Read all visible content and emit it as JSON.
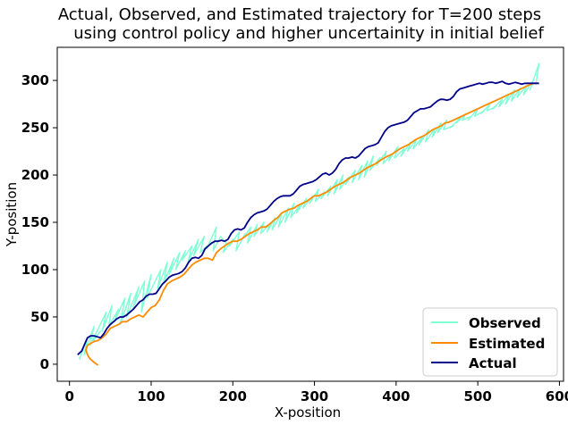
{
  "chart_data": {
    "type": "line",
    "title_line1": "Actual, Observed, and Estimated trajectory for T=200 steps",
    "title_line2": "using control policy and higher uncertainity in initial belief",
    "xlabel": "X-position",
    "ylabel": "Y-position",
    "xlim": [
      -15,
      605
    ],
    "ylim": [
      -18,
      335
    ],
    "xticks": [
      0,
      100,
      200,
      300,
      400,
      500,
      600
    ],
    "yticks": [
      0,
      50,
      100,
      150,
      200,
      250,
      300
    ],
    "xtick_labels": [
      "0",
      "100",
      "200",
      "300",
      "400",
      "500",
      "600"
    ],
    "ytick_labels": [
      "0",
      "50",
      "100",
      "150",
      "200",
      "250",
      "300"
    ],
    "legend_position": "bottom-right",
    "series": [
      {
        "name": "Observed",
        "color": "#7fffd4",
        "x": [
          12,
          22,
          18,
          30,
          25,
          38,
          28,
          45,
          40,
          52,
          48,
          60,
          55,
          68,
          62,
          75,
          70,
          85,
          78,
          92,
          88,
          100,
          95,
          105,
          112,
          108,
          120,
          115,
          128,
          122,
          135,
          130,
          142,
          138,
          150,
          145,
          158,
          152,
          165,
          160,
          172,
          168,
          180,
          176,
          185,
          192,
          188,
          200,
          196,
          208,
          204,
          215,
          210,
          222,
          218,
          230,
          226,
          238,
          234,
          245,
          242,
          252,
          248,
          260,
          256,
          268,
          264,
          275,
          271,
          282,
          278,
          290,
          286,
          298,
          294,
          305,
          301,
          312,
          308,
          320,
          316,
          328,
          324,
          335,
          331,
          342,
          338,
          350,
          346,
          358,
          354,
          365,
          361,
          372,
          368,
          380,
          376,
          388,
          384,
          395,
          391,
          402,
          398,
          410,
          406,
          418,
          414,
          425,
          421,
          432,
          428,
          440,
          436,
          448,
          444,
          455,
          451,
          462,
          458,
          470,
          466,
          478,
          474,
          485,
          481,
          492,
          488,
          500,
          496,
          508,
          504,
          515,
          511,
          522,
          518,
          530,
          526,
          538,
          534,
          545,
          541,
          552,
          548,
          560,
          556,
          568,
          564,
          575,
          571
        ],
        "y": [
          5,
          28,
          10,
          40,
          20,
          35,
          25,
          55,
          35,
          62,
          40,
          58,
          45,
          70,
          42,
          75,
          50,
          82,
          60,
          88,
          55,
          95,
          70,
          88,
          100,
          80,
          108,
          85,
          112,
          95,
          118,
          100,
          120,
          110,
          125,
          108,
          132,
          115,
          135,
          118,
          128,
          122,
          145,
          120,
          135,
          128,
          118,
          132,
          125,
          140,
          120,
          138,
          130,
          145,
          128,
          148,
          135,
          150,
          138,
          148,
          140,
          155,
          142,
          160,
          145,
          165,
          150,
          170,
          155,
          168,
          160,
          175,
          165,
          178,
          170,
          185,
          172,
          182,
          175,
          188,
          178,
          195,
          180,
          200,
          185,
          198,
          190,
          205,
          192,
          210,
          195,
          215,
          198,
          220,
          205,
          218,
          210,
          225,
          212,
          222,
          215,
          230,
          218,
          228,
          220,
          235,
          225,
          238,
          228,
          240,
          232,
          248,
          235,
          250,
          240,
          255,
          245,
          258,
          248,
          252,
          250,
          260,
          255,
          265,
          258,
          262,
          258,
          270,
          262,
          268,
          265,
          275,
          268,
          272,
          270,
          280,
          272,
          285,
          275,
          290,
          278,
          292,
          282,
          295,
          285,
          300,
          290,
          318,
          295
        ]
      },
      {
        "name": "Estimated",
        "color": "#ff8c00",
        "x": [
          35,
          30,
          25,
          22,
          20,
          22,
          26,
          30,
          35,
          40,
          45,
          50,
          55,
          60,
          65,
          70,
          75,
          80,
          85,
          90,
          95,
          100,
          105,
          110,
          115,
          120,
          125,
          130,
          135,
          140,
          145,
          150,
          155,
          160,
          165,
          170,
          175,
          180,
          185,
          190,
          195,
          200,
          205,
          210,
          215,
          220,
          225,
          230,
          235,
          240,
          245,
          250,
          255,
          260,
          265,
          270,
          275,
          280,
          285,
          290,
          295,
          300,
          305,
          310,
          315,
          320,
          325,
          330,
          335,
          340,
          345,
          350,
          355,
          360,
          365,
          370,
          375,
          380,
          385,
          390,
          395,
          400,
          405,
          410,
          415,
          420,
          425,
          430,
          435,
          440,
          445,
          450,
          455,
          460,
          465,
          470,
          475,
          480,
          485,
          490,
          495,
          500,
          505,
          510,
          515,
          520,
          525,
          530,
          535,
          540,
          545,
          550,
          555,
          560,
          565,
          570
        ],
        "y": [
          -1,
          2,
          6,
          10,
          15,
          20,
          22,
          24,
          25,
          28,
          32,
          38,
          40,
          42,
          45,
          45,
          48,
          50,
          52,
          50,
          55,
          60,
          62,
          68,
          78,
          85,
          88,
          90,
          92,
          95,
          100,
          105,
          108,
          110,
          112,
          112,
          110,
          118,
          122,
          125,
          128,
          130,
          130,
          132,
          135,
          138,
          140,
          142,
          145,
          145,
          148,
          152,
          155,
          160,
          162,
          164,
          165,
          168,
          170,
          172,
          175,
          178,
          178,
          180,
          182,
          185,
          188,
          190,
          192,
          195,
          198,
          200,
          202,
          205,
          208,
          210,
          212,
          215,
          218,
          220,
          222,
          225,
          228,
          230,
          232,
          235,
          238,
          240,
          242,
          245,
          248,
          250,
          252,
          255,
          256,
          258,
          260,
          262,
          264,
          266,
          268,
          270,
          272,
          274,
          276,
          278,
          280,
          282,
          284,
          286,
          288,
          290,
          292,
          294,
          296,
          297
        ]
      },
      {
        "name": "Actual",
        "color": "#00008b",
        "x": [
          10,
          15,
          18,
          22,
          26,
          30,
          34,
          38,
          42,
          46,
          50,
          54,
          58,
          62,
          66,
          70,
          74,
          78,
          82,
          86,
          90,
          94,
          98,
          102,
          106,
          110,
          114,
          118,
          122,
          126,
          130,
          134,
          138,
          142,
          146,
          150,
          154,
          158,
          162,
          166,
          170,
          174,
          178,
          182,
          186,
          190,
          194,
          198,
          202,
          206,
          210,
          214,
          218,
          222,
          226,
          230,
          234,
          238,
          242,
          246,
          250,
          254,
          258,
          262,
          266,
          270,
          274,
          278,
          282,
          286,
          290,
          294,
          298,
          302,
          306,
          310,
          314,
          318,
          322,
          326,
          330,
          334,
          338,
          342,
          346,
          350,
          354,
          358,
          362,
          366,
          370,
          374,
          378,
          382,
          386,
          390,
          394,
          398,
          402,
          406,
          410,
          414,
          418,
          422,
          426,
          430,
          434,
          438,
          442,
          446,
          450,
          454,
          458,
          462,
          466,
          470,
          474,
          478,
          482,
          486,
          490,
          494,
          498,
          502,
          506,
          510,
          514,
          518,
          522,
          526,
          530,
          534,
          538,
          542,
          546,
          550,
          554,
          558,
          562,
          566,
          570,
          575
        ],
        "y": [
          10,
          14,
          20,
          28,
          30,
          30,
          29,
          28,
          32,
          38,
          42,
          45,
          48,
          50,
          50,
          52,
          55,
          58,
          62,
          66,
          68,
          72,
          74,
          74,
          75,
          80,
          85,
          88,
          92,
          94,
          95,
          96,
          98,
          102,
          108,
          112,
          113,
          112,
          115,
          122,
          125,
          128,
          130,
          130,
          131,
          130,
          132,
          138,
          142,
          143,
          142,
          144,
          150,
          155,
          158,
          160,
          161,
          162,
          164,
          168,
          172,
          175,
          177,
          178,
          178,
          178,
          180,
          184,
          188,
          190,
          191,
          192,
          193,
          195,
          198,
          201,
          202,
          200,
          202,
          206,
          212,
          216,
          218,
          218,
          219,
          218,
          220,
          224,
          228,
          230,
          231,
          232,
          234,
          240,
          246,
          250,
          252,
          253,
          254,
          255,
          256,
          258,
          262,
          266,
          268,
          270,
          270,
          271,
          272,
          275,
          278,
          280,
          280,
          279,
          280,
          283,
          288,
          291,
          292,
          293,
          294,
          295,
          296,
          297,
          296,
          297,
          298,
          298,
          297,
          298,
          299,
          297,
          296,
          297,
          298,
          297,
          296,
          297,
          297,
          297,
          297,
          297
        ]
      }
    ]
  }
}
